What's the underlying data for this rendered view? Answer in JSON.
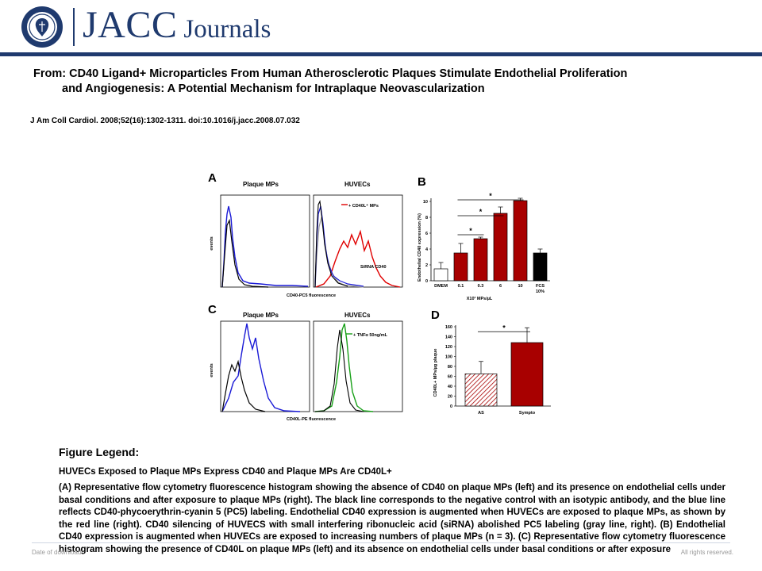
{
  "header": {
    "logo_main": "JACC",
    "logo_sub": "Journals"
  },
  "article": {
    "title_line1": "From: CD40 Ligand+ Microparticles From Human Atherosclerotic Plaques Stimulate Endothelial Proliferation",
    "title_line2": "and Angiogenesis: A Potential Mechanism for Intraplaque Neovascularization",
    "citation": "J Am Coll Cardiol. 2008;52(16):1302-1311. doi:10.1016/j.jacc.2008.07.032"
  },
  "figure": {
    "panel_a": {
      "letter": "A",
      "left_title": "Plaque MPs",
      "right_title": "HUVECs",
      "y_label": "events",
      "x_label": "CD40-PC5 fluorescence",
      "legend_red": "+ CD40L⁺ MPs",
      "legend_gray": "SiRNA CD40"
    },
    "panel_b": {
      "letter": "B",
      "y_label": "Endothelial CD40 expression (%)",
      "y_ticks": [
        "0",
        "2",
        "4",
        "6",
        "8",
        "10"
      ],
      "x_group_label": "X10³ MPs/µL",
      "sig_mark": "*"
    },
    "panel_c": {
      "letter": "C",
      "left_title": "Plaque MPs",
      "right_title": "HUVECs",
      "y_label": "events",
      "x_label": "CD40L-PE fluorescence",
      "legend_green": "+ TNFα 50ng/mL"
    },
    "panel_d": {
      "letter": "D",
      "y_label": "CD40L+ MPs/µg plaque",
      "y_ticks": [
        "0",
        "20",
        "40",
        "60",
        "80",
        "100",
        "120",
        "140",
        "160"
      ],
      "sig_mark": "*"
    }
  },
  "chart_data": [
    {
      "type": "bar",
      "panel": "B",
      "categories": [
        "DMEM",
        "0.1",
        "0.3",
        "6",
        "10",
        "FCS 10%"
      ],
      "values": [
        1.5,
        3.5,
        5.3,
        8.5,
        10.1,
        3.5
      ],
      "errors": [
        0.8,
        1.2,
        0.2,
        0.8,
        0.3,
        0.5
      ],
      "colors": [
        "#ffffff",
        "#a80000",
        "#a80000",
        "#a80000",
        "#a80000",
        "#000000"
      ],
      "ylabel": "Endothelial CD40 expression (%)",
      "xlabel": "X10³ MPs/µL",
      "ylim": [
        0,
        10
      ]
    },
    {
      "type": "bar",
      "panel": "D",
      "categories": [
        "AS",
        "Sympto"
      ],
      "values": [
        65,
        128
      ],
      "errors": [
        25,
        30
      ],
      "ylabel": "CD40L+ MPs/µg plaque",
      "ylim": [
        0,
        160
      ]
    }
  ],
  "legend": {
    "heading": "Figure Legend:",
    "subtitle": "HUVECs Exposed to Plaque MPs Express CD40 and Plaque MPs Are CD40L+",
    "body": "(A) Representative flow cytometry fluorescence histogram showing the absence of CD40 on plaque MPs (left) and its presence on endothelial cells under basal conditions and after exposure to plaque MPs (right). The black line corresponds to the negative control with an isotypic antibody, and the blue line reflects CD40-phycoerythrin-cyanin 5 (PC5) labeling. Endothelial CD40 expression is augmented when HUVECs are exposed to plaque MPs, as shown by the red line (right). CD40 silencing of HUVECS with small interfering ribonucleic acid (siRNA) abolished PC5 labeling (gray line, right). (B) Endothelial CD40 expression is augmented when HUVECs are exposed to increasing numbers of plaque MPs (n = 3). (C) Representative flow cytometry fluorescence histogram showing the presence of CD40L on plaque MPs (left) and its absence on endothelial cells under basal conditions or after exposure"
  },
  "footer": {
    "left": "Date of download:",
    "right": "All rights reserved."
  }
}
